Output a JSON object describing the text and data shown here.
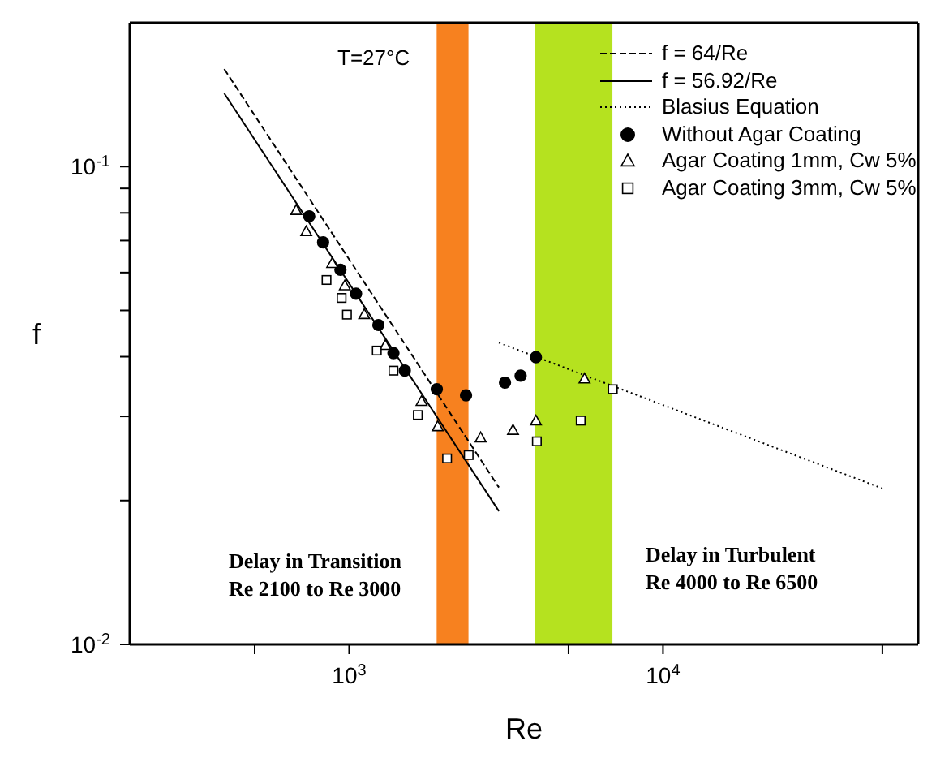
{
  "chart_data": {
    "type": "scatter",
    "xlabel": "Re",
    "ylabel": "f",
    "log": "xy",
    "legend": "top right",
    "xlim": [
      200,
      65000
    ],
    "xticks": [
      {
        "value": 500,
        "label": null
      },
      {
        "value": 1000,
        "label": "10$^{3}$"
      },
      {
        "value": 5000,
        "label": null
      },
      {
        "value": 10000,
        "label": "10$^{4}$"
      },
      {
        "value": 50000,
        "label": null
      }
    ],
    "ylim": [
      0.01,
      0.2
    ],
    "yticks": [
      {
        "value": 0.01,
        "label": "10$^{-2}$"
      },
      {
        "value": 0.02,
        "label": null
      },
      {
        "value": 0.03,
        "label": null
      },
      {
        "value": 0.04,
        "label": null
      },
      {
        "value": 0.05,
        "label": null
      },
      {
        "value": 0.06,
        "label": null
      },
      {
        "value": 0.07,
        "label": null
      },
      {
        "value": 0.08,
        "label": null
      },
      {
        "value": 0.09,
        "label": null
      },
      {
        "value": 0.1,
        "label": "10$^{-1}$"
      }
    ],
    "bands": [
      {
        "axis": "x",
        "from": 1900,
        "to": 2400,
        "color": "#f7811f"
      },
      {
        "axis": "x",
        "from": 3900,
        "to": 6900,
        "color": "#b5e21f"
      }
    ],
    "series": [
      {
        "name": "f = 64/Re",
        "type": "line",
        "line_style": "dashed",
        "color": "#000000",
        "x": [
          400,
          3000
        ],
        "values": [
          0.16,
          0.0213
        ]
      },
      {
        "name": "f = 56.92/Re",
        "type": "line",
        "line_style": "solid",
        "color": "#000000",
        "x": [
          400,
          3000
        ],
        "values": [
          0.1423,
          0.019
        ]
      },
      {
        "name": "Blasius Equation",
        "type": "line",
        "line_style": "dotted",
        "color": "#000000",
        "x": [
          3000,
          50000
        ],
        "values": [
          0.0428,
          0.0212
        ]
      },
      {
        "name": "Without Agar Coating",
        "type": "scatter",
        "marker": "circle",
        "color": "#000000",
        "x": [
          746,
          826,
          938,
          1052,
          1239,
          1384,
          1504,
          1902,
          2357,
          3137,
          3518,
          3936
        ],
        "values": [
          0.0787,
          0.0694,
          0.0608,
          0.0542,
          0.0466,
          0.0407,
          0.0374,
          0.0342,
          0.0332,
          0.0353,
          0.0365,
          0.0399
        ]
      },
      {
        "name": "Agar Coating 1mm, Cw 5%",
        "type": "scatter",
        "marker": "triangle",
        "color": "#000000",
        "x": [
          678,
          730,
          883,
          969,
          1117,
          1304,
          1701,
          1915,
          2624,
          3327,
          3936,
          5623
        ],
        "values": [
          0.0811,
          0.0732,
          0.0628,
          0.0564,
          0.0491,
          0.0423,
          0.0323,
          0.0286,
          0.0271,
          0.0281,
          0.0294,
          0.036
        ]
      },
      {
        "name": "Agar Coating 3mm, Cw 5%",
        "type": "scatter",
        "marker": "square",
        "color": "#000000",
        "x": [
          847,
          946,
          984,
          1225,
          1384,
          1655,
          2051,
          2403,
          3963,
          5467,
          6918
        ],
        "values": [
          0.0579,
          0.0531,
          0.049,
          0.0412,
          0.0374,
          0.0302,
          0.0245,
          0.0249,
          0.0266,
          0.0294,
          0.0342
        ]
      }
    ],
    "annotations": [
      "T=27°C",
      "Delay in Transition\nRe 2100 to Re 3000",
      "Delay in Turbulent\nRe 4000 to Re 6500"
    ]
  }
}
